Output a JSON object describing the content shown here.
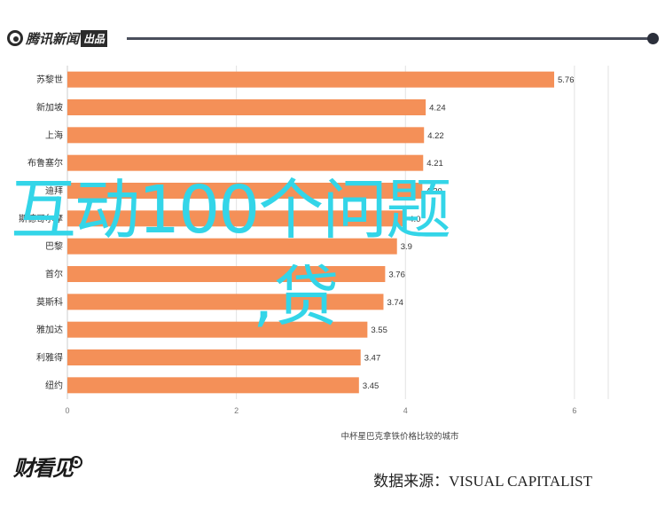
{
  "header": {
    "logo_text": "腾讯新闻",
    "logo_tag": "出品"
  },
  "overlay": {
    "title": "互动100个问题",
    "subtitle": ",贷"
  },
  "footer": {
    "brand": "财看见",
    "source": "数据来源：VISUAL CAPITALIST"
  },
  "colors": {
    "bar": "#f49058",
    "overlay_text": "#33d5e8",
    "header_line": "#4a4f5c"
  },
  "chart_data": {
    "type": "bar",
    "orientation": "horizontal",
    "categories": [
      "苏黎世",
      "新加坡",
      "上海",
      "布鲁塞尔",
      "迪拜",
      "斯德哥尔摩",
      "巴黎",
      "首尔",
      "莫斯科",
      "雅加达",
      "利雅得",
      "纽约"
    ],
    "values": [
      5.76,
      4.24,
      4.22,
      4.21,
      4.2,
      4.0,
      3.9,
      3.76,
      3.74,
      3.55,
      3.47,
      3.45
    ],
    "value_labels": [
      "5.76",
      "4.24",
      "4.22",
      "4.21",
      "4.20",
      "4.0",
      "3.9",
      "3.76",
      "3.74",
      "3.55",
      "3.47",
      "3.45"
    ],
    "x_ticks": [
      "0",
      "2",
      "4",
      "6"
    ],
    "xlim": [
      0,
      6.4
    ],
    "xlabel": "中杯星巴克拿铁价格比较的城市",
    "grid": true
  }
}
